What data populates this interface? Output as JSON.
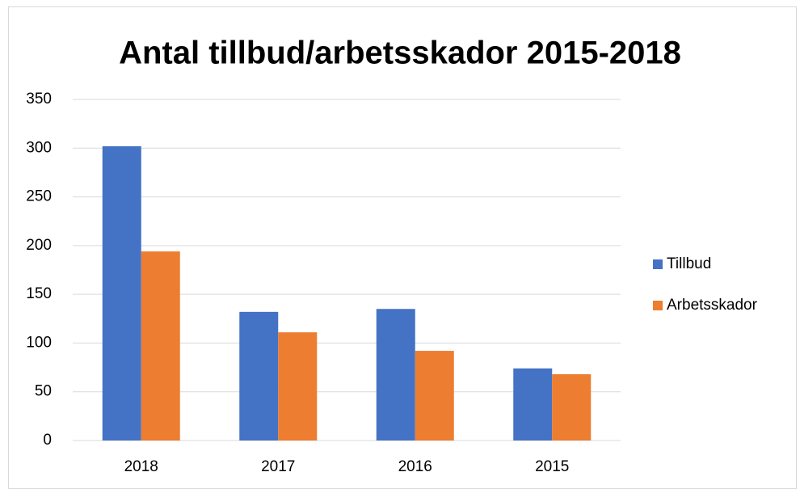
{
  "chart_data": {
    "type": "bar",
    "title": "Antal tillbud/arbetsskador 2015-2018",
    "categories": [
      "2018",
      "2017",
      "2016",
      "2015"
    ],
    "series": [
      {
        "name": "Tillbud",
        "color": "#4472c4",
        "values": [
          302,
          132,
          135,
          74
        ]
      },
      {
        "name": "Arbetsskador",
        "color": "#ed7d31",
        "values": [
          194,
          111,
          92,
          68
        ]
      }
    ],
    "ylim": [
      0,
      350
    ],
    "yticks": [
      0,
      50,
      100,
      150,
      200,
      250,
      300,
      350
    ],
    "grid": true,
    "legend": "right"
  }
}
